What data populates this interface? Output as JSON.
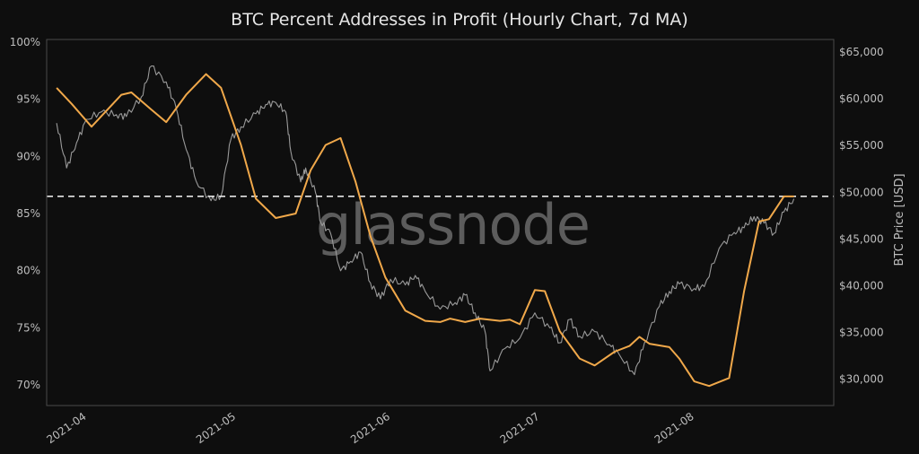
{
  "chart_data": {
    "type": "line",
    "title": "BTC Percent Addresses in Profit (Hourly Chart, 7d MA)",
    "xlabel": "",
    "ylabel_left": "",
    "ylabel_right": "BTC Price [USD]",
    "watermark": "glassnode",
    "ylim_left": [
      68.3,
      100.2
    ],
    "ylim_right": [
      27300,
      65700
    ],
    "grid": false,
    "legend": null,
    "x_ticks": [
      "2021-04",
      "2021-05",
      "2021-06",
      "2021-07",
      "2021-08"
    ],
    "y_ticks_left": [
      "100%",
      "95%",
      "90%",
      "85%",
      "80%",
      "75%",
      "70%"
    ],
    "y_ticks_right": [
      "$65,000",
      "$60,000",
      "$55,000",
      "$50,000",
      "$45,000",
      "$40,000",
      "$35,000",
      "$30,000"
    ],
    "threshold_line": {
      "value_percent": 86.5,
      "style": "dashed",
      "color": "#e0e0e0"
    },
    "series": [
      {
        "name": "Percent Addresses in Profit (7d MA)",
        "axis": "left",
        "color": "#f0a84a",
        "x_dates": [
          "2021-03-27",
          "2021-03-30",
          "2021-04-03",
          "2021-04-06",
          "2021-04-09",
          "2021-04-11",
          "2021-04-15",
          "2021-04-18",
          "2021-04-22",
          "2021-04-26",
          "2021-04-29",
          "2021-05-03",
          "2021-05-06",
          "2021-05-10",
          "2021-05-14",
          "2021-05-17",
          "2021-05-20",
          "2021-05-23",
          "2021-05-26",
          "2021-05-29",
          "2021-06-01",
          "2021-06-05",
          "2021-06-09",
          "2021-06-12",
          "2021-06-14",
          "2021-06-17",
          "2021-06-20",
          "2021-06-24",
          "2021-06-26",
          "2021-06-28",
          "2021-07-01",
          "2021-07-03",
          "2021-07-06",
          "2021-07-10",
          "2021-07-13",
          "2021-07-17",
          "2021-07-20",
          "2021-07-22",
          "2021-07-24",
          "2021-07-28",
          "2021-07-30",
          "2021-08-02",
          "2021-08-05",
          "2021-08-09",
          "2021-08-12",
          "2021-08-15",
          "2021-08-17",
          "2021-08-20",
          "2021-08-22"
        ],
        "values": [
          96.0,
          94.6,
          92.6,
          94.0,
          95.4,
          95.6,
          94.1,
          93.0,
          95.4,
          97.2,
          96.0,
          91.0,
          86.3,
          84.6,
          85.0,
          88.8,
          91.0,
          91.6,
          87.8,
          83.0,
          79.4,
          76.5,
          75.6,
          75.5,
          75.8,
          75.5,
          75.8,
          75.6,
          75.7,
          75.3,
          78.3,
          78.2,
          74.7,
          72.3,
          71.7,
          72.9,
          73.4,
          74.2,
          73.6,
          73.3,
          72.3,
          70.3,
          69.9,
          70.6,
          78.2,
          84.3,
          84.5,
          86.5,
          86.5
        ]
      },
      {
        "name": "BTC Price [USD]",
        "axis": "right",
        "color": "#9a9a9a",
        "x_dates": [
          "2021-03-27",
          "2021-03-29",
          "2021-03-31",
          "2021-04-02",
          "2021-04-05",
          "2021-04-08",
          "2021-04-10",
          "2021-04-13",
          "2021-04-15",
          "2021-04-18",
          "2021-04-20",
          "2021-04-22",
          "2021-04-24",
          "2021-04-27",
          "2021-04-29",
          "2021-05-01",
          "2021-05-03",
          "2021-05-06",
          "2021-05-08",
          "2021-05-10",
          "2021-05-12",
          "2021-05-13",
          "2021-05-15",
          "2021-05-16",
          "2021-05-18",
          "2021-05-19",
          "2021-05-21",
          "2021-05-23",
          "2021-05-25",
          "2021-05-27",
          "2021-05-29",
          "2021-05-31",
          "2021-06-02",
          "2021-06-05",
          "2021-06-07",
          "2021-06-09",
          "2021-06-12",
          "2021-06-15",
          "2021-06-17",
          "2021-06-19",
          "2021-06-21",
          "2021-06-22",
          "2021-06-25",
          "2021-06-28",
          "2021-07-01",
          "2021-07-04",
          "2021-07-06",
          "2021-07-08",
          "2021-07-10",
          "2021-07-13",
          "2021-07-16",
          "2021-07-18",
          "2021-07-21",
          "2021-07-23",
          "2021-07-26",
          "2021-07-28",
          "2021-07-30",
          "2021-08-02",
          "2021-08-04",
          "2021-08-07",
          "2021-08-10",
          "2021-08-12",
          "2021-08-14",
          "2021-08-16",
          "2021-08-18",
          "2021-08-20",
          "2021-08-22"
        ],
        "values": [
          57400,
          52600,
          55300,
          57800,
          58600,
          58300,
          58100,
          60200,
          63500,
          61800,
          59000,
          54600,
          51200,
          49100,
          49600,
          55700,
          57000,
          58400,
          59400,
          59600,
          58600,
          54400,
          51100,
          52600,
          49900,
          46800,
          45600,
          41600,
          42600,
          43600,
          40300,
          38600,
          40700,
          40100,
          41100,
          39400,
          37500,
          38200,
          39000,
          37100,
          35100,
          30900,
          33300,
          34400,
          37100,
          35500,
          33900,
          36400,
          34600,
          35100,
          33700,
          32600,
          30500,
          33900,
          37800,
          39400,
          40200,
          39700,
          39900,
          44000,
          45700,
          46200,
          47400,
          46700,
          45600,
          47900,
          49300
        ]
      }
    ]
  }
}
